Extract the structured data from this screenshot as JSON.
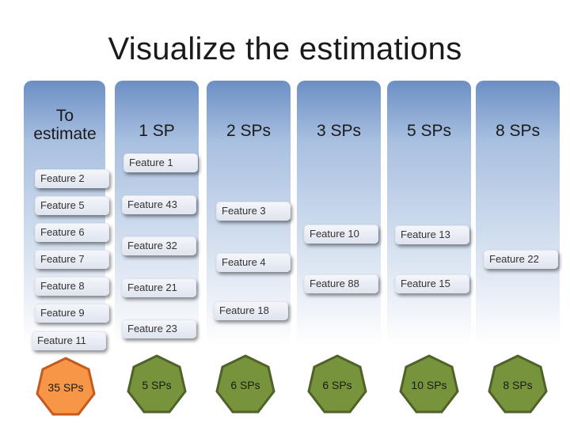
{
  "title": "Visualize the estimations",
  "columns": [
    {
      "label": "To estimate",
      "total": "35 SPs"
    },
    {
      "label": "1 SP",
      "total": "5 SPs"
    },
    {
      "label": "2 SPs",
      "total": "6 SPs"
    },
    {
      "label": "3 SPs",
      "total": "6 SPs"
    },
    {
      "label": "5 SPs",
      "total": "10 SPs"
    },
    {
      "label": "8 SPs",
      "total": "8 SPs"
    }
  ],
  "cards": {
    "feature_1": "Feature 1",
    "feature_2": "Feature 2",
    "feature_3": "Feature 3",
    "feature_4": "Feature 4",
    "feature_5": "Feature 5",
    "feature_6": "Feature 6",
    "feature_7": "Feature 7",
    "feature_8": "Feature 8",
    "feature_9": "Feature 9",
    "feature_10": "Feature 10",
    "feature_11": "Feature 11",
    "feature_13": "Feature 13",
    "feature_15": "Feature 15",
    "feature_18": "Feature 18",
    "feature_21": "Feature 21",
    "feature_22": "Feature 22",
    "feature_23": "Feature 23",
    "feature_32": "Feature 32",
    "feature_43": "Feature 43",
    "feature_88": "Feature 88"
  },
  "colors": {
    "unestimated_badge": "#f79646",
    "estimated_badge": "#77933c",
    "column_top": "#6b8fc5"
  }
}
